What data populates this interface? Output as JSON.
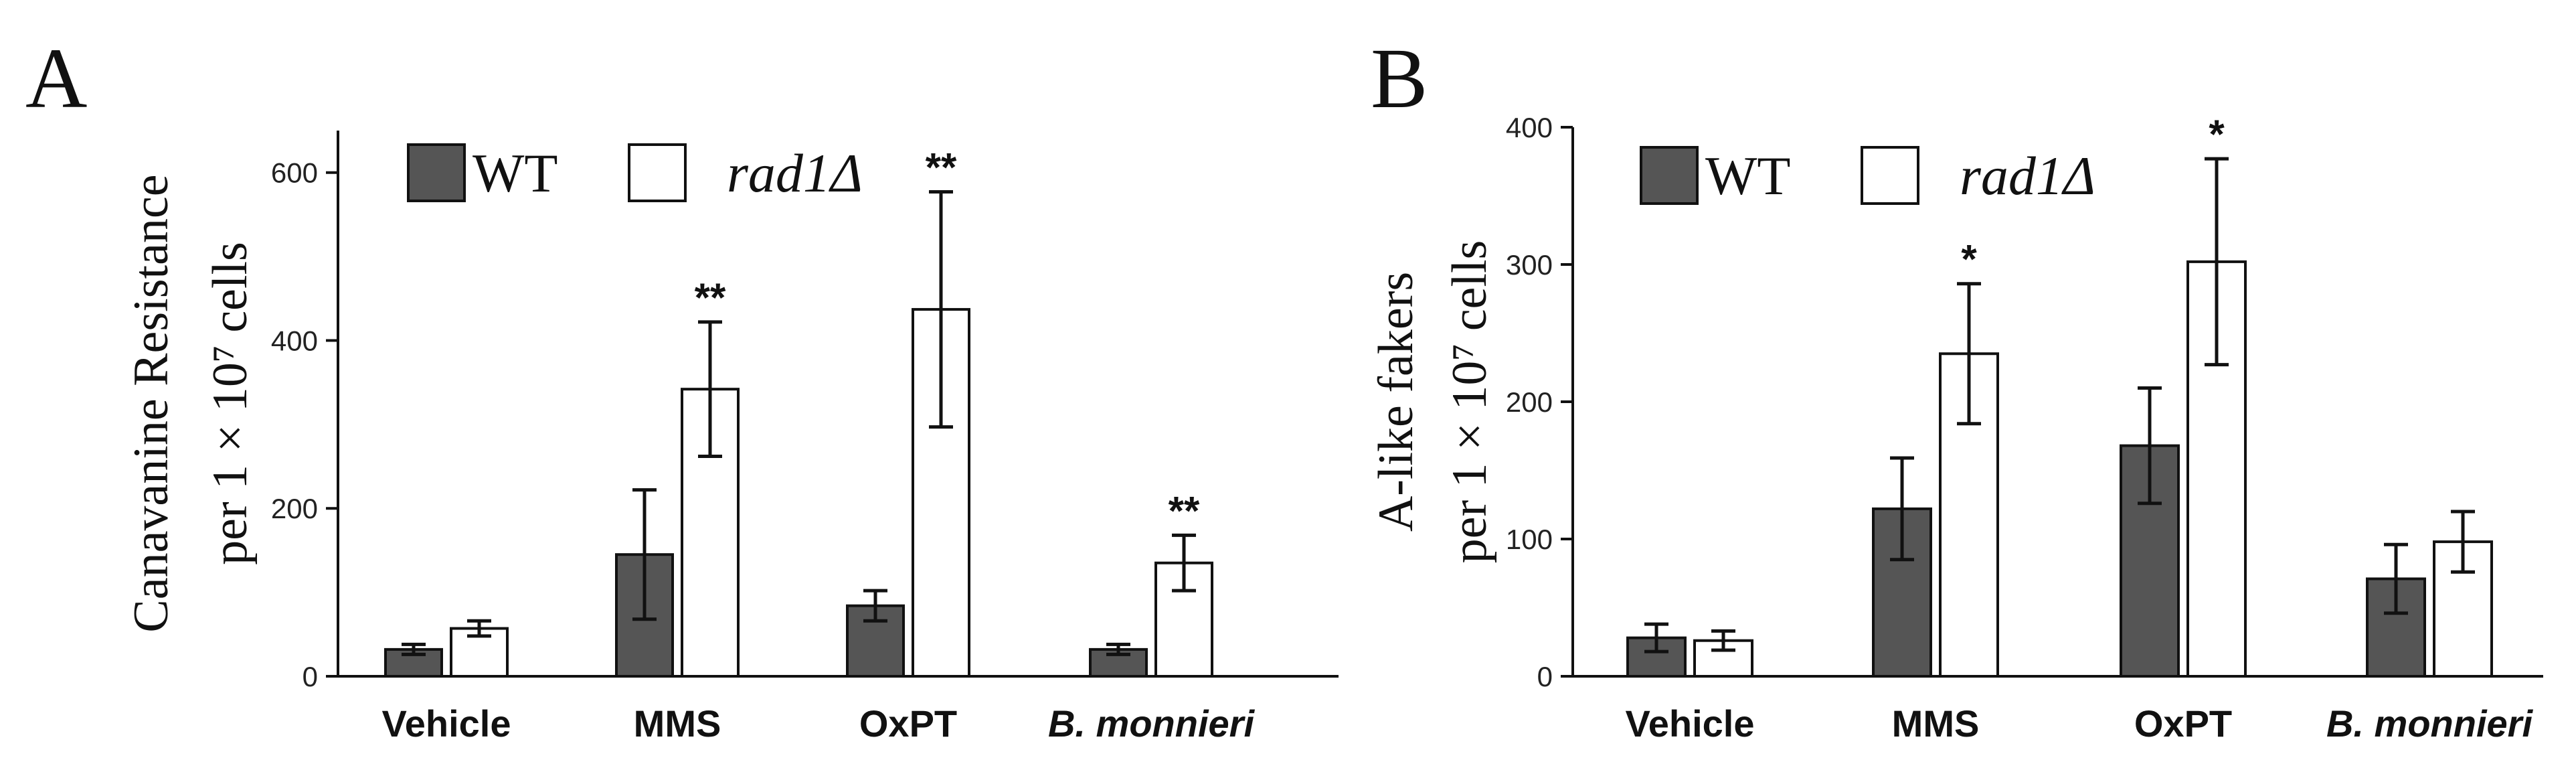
{
  "chart_data": [
    {
      "panel": "A",
      "type": "bar",
      "ylabel_lines": [
        "Canavanine Resistance",
        "per 1 × 10⁷ cells"
      ],
      "categories": [
        "Vehicle",
        "MMS",
        "OxPT",
        "B. monnieri"
      ],
      "italic_categories": [
        "B. monnieri"
      ],
      "yticks": [
        0,
        200,
        400,
        600
      ],
      "ylim": [
        0,
        650
      ],
      "legend": {
        "position": "top-left",
        "items": [
          "WT",
          "rad1Δ"
        ]
      },
      "series": [
        {
          "name": "WT",
          "color": "#555555",
          "values": [
            32,
            145,
            84,
            32
          ],
          "errors": [
            6,
            77,
            18,
            6
          ]
        },
        {
          "name": "rad1Δ",
          "color": "#ffffff",
          "values": [
            57,
            342,
            437,
            135
          ],
          "errors": [
            9,
            80,
            140,
            33
          ]
        }
      ],
      "significance": [
        {
          "category": "MMS",
          "series": "rad1Δ",
          "label": "**"
        },
        {
          "category": "OxPT",
          "series": "rad1Δ",
          "label": "**"
        },
        {
          "category": "B. monnieri",
          "series": "rad1Δ",
          "label": "**"
        }
      ]
    },
    {
      "panel": "B",
      "type": "bar",
      "ylabel_lines": [
        "A-like fakers",
        "per 1 × 10⁷ cells"
      ],
      "categories": [
        "Vehicle",
        "MMS",
        "OxPT",
        "B. monnieri"
      ],
      "italic_categories": [
        "B. monnieri"
      ],
      "yticks": [
        0,
        100,
        200,
        300,
        400
      ],
      "ylim": [
        0,
        400
      ],
      "legend": {
        "position": "top-left",
        "items": [
          "WT",
          "rad1Δ"
        ]
      },
      "series": [
        {
          "name": "WT",
          "color": "#555555",
          "values": [
            28,
            122,
            168,
            71
          ],
          "errors": [
            10,
            37,
            42,
            25
          ]
        },
        {
          "name": "rad1Δ",
          "color": "#ffffff",
          "values": [
            26,
            235,
            302,
            98
          ],
          "errors": [
            7,
            51,
            75,
            22
          ]
        }
      ],
      "significance": [
        {
          "category": "MMS",
          "series": "rad1Δ",
          "label": "*"
        },
        {
          "category": "OxPT",
          "series": "rad1Δ",
          "label": "*"
        }
      ]
    }
  ]
}
